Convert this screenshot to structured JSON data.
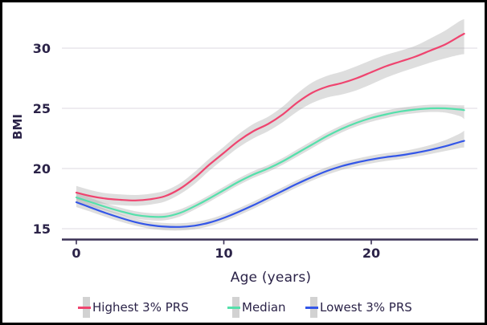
{
  "chart_data": {
    "type": "line",
    "xlabel": "Age (years)",
    "ylabel": "BMI",
    "x_ticks": [
      0,
      10,
      20
    ],
    "y_ticks": [
      15,
      20,
      25,
      30
    ],
    "xlim": [
      -1,
      27.2
    ],
    "ylim": [
      14.1,
      33.2
    ],
    "grid": "horizontal",
    "legend_position": "bottom",
    "colors": {
      "band": "#d9d9d9",
      "gridline": "#e8e6ec",
      "axis": "#3b3256",
      "text": "#2b2348",
      "background": "#ffffff",
      "border": "#000000"
    },
    "ages": [
      0,
      1,
      2,
      3,
      4,
      5,
      6,
      7,
      8,
      9,
      10,
      11,
      12,
      13,
      14,
      15,
      16,
      17,
      18,
      19,
      20,
      21,
      22,
      23,
      24,
      25,
      26,
      26.3
    ],
    "series": [
      {
        "name": "Highest 3% PRS",
        "color": "#ef446f",
        "bmi": [
          18.0,
          17.7,
          17.5,
          17.4,
          17.35,
          17.45,
          17.7,
          18.3,
          19.2,
          20.3,
          21.3,
          22.3,
          23.1,
          23.7,
          24.5,
          25.5,
          26.3,
          26.8,
          27.1,
          27.5,
          28.0,
          28.5,
          28.9,
          29.3,
          29.8,
          30.3,
          31.0,
          31.2
        ],
        "band_upper": [
          18.55,
          18.2,
          17.95,
          17.85,
          17.8,
          17.9,
          18.15,
          18.75,
          19.7,
          20.8,
          21.8,
          22.85,
          23.7,
          24.3,
          25.15,
          26.25,
          27.15,
          27.7,
          28.05,
          28.5,
          29.0,
          29.45,
          29.8,
          30.2,
          30.8,
          31.45,
          32.25,
          32.4
        ],
        "band_lower": [
          17.45,
          17.2,
          17.05,
          16.95,
          16.9,
          17.0,
          17.25,
          17.85,
          18.7,
          19.8,
          20.8,
          21.75,
          22.5,
          23.1,
          23.85,
          24.75,
          25.45,
          25.9,
          26.15,
          26.5,
          27.0,
          27.55,
          28.0,
          28.4,
          28.8,
          29.15,
          29.45,
          29.5
        ]
      },
      {
        "name": "Median",
        "color": "#55e0ab",
        "bmi": [
          17.6,
          17.2,
          16.8,
          16.45,
          16.15,
          16.0,
          16.0,
          16.3,
          16.85,
          17.5,
          18.2,
          18.9,
          19.5,
          20.0,
          20.6,
          21.3,
          22.0,
          22.7,
          23.3,
          23.8,
          24.2,
          24.5,
          24.75,
          24.9,
          25.0,
          25.0,
          24.9,
          24.85
        ],
        "band_upper": [
          18.0,
          17.55,
          17.1,
          16.75,
          16.45,
          16.3,
          16.3,
          16.6,
          17.13,
          17.78,
          18.48,
          19.18,
          19.78,
          20.28,
          20.88,
          21.6,
          22.3,
          23.0,
          23.6,
          24.1,
          24.52,
          24.82,
          25.05,
          25.2,
          25.3,
          25.3,
          25.25,
          25.25
        ],
        "band_lower": [
          17.2,
          16.85,
          16.5,
          16.15,
          15.85,
          15.7,
          15.7,
          16.0,
          16.57,
          17.22,
          17.92,
          18.62,
          19.22,
          19.72,
          20.32,
          21.0,
          21.7,
          22.4,
          23.0,
          23.5,
          23.88,
          24.18,
          24.45,
          24.6,
          24.7,
          24.65,
          24.35,
          24.1
        ]
      },
      {
        "name": "Lowest 3% PRS",
        "color": "#3356e8",
        "bmi": [
          17.2,
          16.75,
          16.3,
          15.9,
          15.55,
          15.3,
          15.17,
          15.15,
          15.25,
          15.5,
          15.9,
          16.4,
          16.95,
          17.55,
          18.15,
          18.75,
          19.3,
          19.8,
          20.2,
          20.5,
          20.75,
          20.95,
          21.1,
          21.3,
          21.55,
          21.85,
          22.2,
          22.3
        ],
        "band_upper": [
          17.6,
          17.1,
          16.63,
          16.22,
          15.85,
          15.6,
          15.47,
          15.45,
          15.55,
          15.8,
          16.2,
          16.7,
          17.25,
          17.85,
          18.45,
          19.05,
          19.6,
          20.12,
          20.52,
          20.82,
          21.07,
          21.27,
          21.42,
          21.65,
          21.95,
          22.35,
          22.9,
          23.15
        ],
        "band_lower": [
          16.8,
          16.4,
          15.97,
          15.58,
          15.25,
          15.0,
          14.87,
          14.85,
          14.95,
          15.2,
          15.6,
          16.1,
          16.65,
          17.25,
          17.85,
          18.45,
          19.0,
          19.48,
          19.88,
          20.18,
          20.43,
          20.63,
          20.78,
          20.98,
          21.2,
          21.45,
          21.7,
          21.75
        ]
      }
    ]
  }
}
